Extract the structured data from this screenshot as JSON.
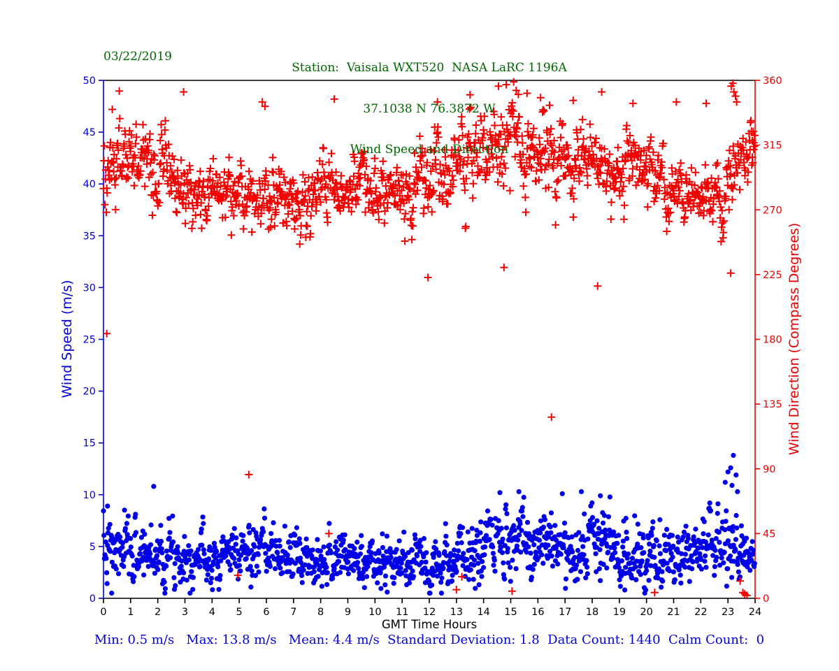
{
  "colors": {
    "green": "#006600",
    "blue": "#0000dd",
    "red": "#ee0000",
    "black": "#000000"
  },
  "header": {
    "date": "03/22/2019",
    "title_line1": "Station:  Vaisala WXT520  NASA LaRC 1196A",
    "title_line2": "37.1038 N 76.3872 W",
    "title_line3": "Wind Speed and Direction"
  },
  "footer": {
    "stats": "Min: 0.5 m/s   Max: 13.8 m/s   Mean: 4.4 m/s  Standard Deviation: 1.8  Data Count: 1440  Calm Count:  0",
    "min_ms": 0.5,
    "max_ms": 13.8,
    "mean_ms": 4.4,
    "std_dev": 1.8,
    "data_count": 1440,
    "calm_count": 0
  },
  "chart_data": {
    "type": "scatter",
    "seed": 7,
    "x": {
      "label": "GMT Time Hours",
      "min": 0,
      "max": 24,
      "ticks": [
        0,
        1,
        2,
        3,
        4,
        5,
        6,
        7,
        8,
        9,
        10,
        11,
        12,
        13,
        14,
        15,
        16,
        17,
        18,
        19,
        20,
        21,
        22,
        23,
        24
      ]
    },
    "y_left": {
      "label": "Wind Speed (m/s)",
      "min": 0,
      "max": 50,
      "ticks": [
        0,
        5,
        10,
        15,
        20,
        25,
        30,
        35,
        40,
        45,
        50
      ],
      "color": "#0000dd"
    },
    "y_right": {
      "label": "Wind Direction (Compass Degrees)",
      "min": 0,
      "max": 360,
      "ticks": [
        0,
        45,
        90,
        135,
        180,
        225,
        270,
        315,
        360
      ],
      "color": "#ee0000"
    },
    "series": [
      {
        "name": "wind-speed",
        "axis": "left",
        "marker": "circle",
        "color": "#0000e6",
        "count": 1440,
        "smooth": 0.45,
        "clamp": [
          0.5,
          13.8
        ],
        "hourly_mean": [
          4.3,
          4.5,
          4.4,
          4.3,
          4.2,
          4.4,
          4.3,
          4.0,
          4.0,
          3.8,
          3.5,
          3.3,
          3.6,
          3.9,
          4.6,
          5.0,
          5.2,
          5.3,
          5.2,
          4.6,
          4.0,
          4.3,
          5.0,
          6.0,
          3.6
        ],
        "hourly_std": [
          1.5,
          1.6,
          1.5,
          1.4,
          1.3,
          1.4,
          1.4,
          1.3,
          1.3,
          1.2,
          1.1,
          1.1,
          1.2,
          1.4,
          1.6,
          1.7,
          1.7,
          1.7,
          1.7,
          1.6,
          1.4,
          1.5,
          1.8,
          2.4,
          0.7
        ],
        "outliers": [
          [
            0.15,
            8.9
          ],
          [
            0.3,
            0.5
          ],
          [
            1.85,
            10.8
          ],
          [
            10.45,
            0.6
          ],
          [
            14.6,
            10.2
          ],
          [
            15.3,
            10.3
          ],
          [
            16.9,
            10.1
          ],
          [
            17.6,
            10.3
          ],
          [
            18.3,
            9.9
          ],
          [
            19.2,
            0.8
          ],
          [
            22.9,
            11.2
          ],
          [
            23.0,
            12.2
          ],
          [
            23.1,
            12.6
          ],
          [
            23.15,
            10.9
          ],
          [
            23.2,
            13.8
          ],
          [
            23.3,
            11.9
          ],
          [
            23.35,
            10.3
          ]
        ]
      },
      {
        "name": "wind-direction",
        "axis": "right",
        "marker": "plus",
        "color": "#f40000",
        "count": 1440,
        "smooth": 0.55,
        "clamp": [
          1,
          359
        ],
        "hourly_mean": [
          303,
          302,
          299,
          286,
          283,
          284,
          283,
          280,
          284,
          287,
          283,
          281,
          294,
          301,
          310,
          314,
          308,
          304,
          305,
          302,
          299,
          291,
          276,
          285,
          330
        ],
        "hourly_std": [
          13,
          13,
          14,
          12,
          11,
          13,
          12,
          11,
          12,
          11,
          10,
          11,
          15,
          15,
          16,
          17,
          16,
          15,
          13,
          12,
          12,
          13,
          9,
          15,
          12
        ],
        "outliers": [
          [
            0.12,
            184
          ],
          [
            2.95,
            352
          ],
          [
            4.95,
            16
          ],
          [
            5.35,
            86
          ],
          [
            5.85,
            345
          ],
          [
            5.95,
            342
          ],
          [
            8.3,
            45
          ],
          [
            8.5,
            347
          ],
          [
            11.95,
            223
          ],
          [
            12.3,
            345
          ],
          [
            13.0,
            6
          ],
          [
            13.2,
            15
          ],
          [
            13.5,
            350
          ],
          [
            14.55,
            356
          ],
          [
            14.75,
            230
          ],
          [
            15.05,
            5
          ],
          [
            15.2,
            353
          ],
          [
            15.6,
            351
          ],
          [
            16.1,
            348
          ],
          [
            16.5,
            126
          ],
          [
            17.3,
            346
          ],
          [
            18.2,
            217
          ],
          [
            18.35,
            352
          ],
          [
            19.5,
            344
          ],
          [
            20.3,
            4
          ],
          [
            21.1,
            345
          ],
          [
            22.2,
            344
          ],
          [
            23.1,
            226
          ],
          [
            23.12,
            356
          ],
          [
            23.18,
            358
          ],
          [
            23.22,
            352
          ],
          [
            23.28,
            349
          ],
          [
            23.32,
            345
          ],
          [
            23.45,
            12
          ],
          [
            23.55,
            4
          ],
          [
            23.62,
            3
          ],
          [
            23.7,
            2
          ],
          [
            23.9,
            318
          ],
          [
            23.95,
            312
          ]
        ]
      }
    ]
  }
}
